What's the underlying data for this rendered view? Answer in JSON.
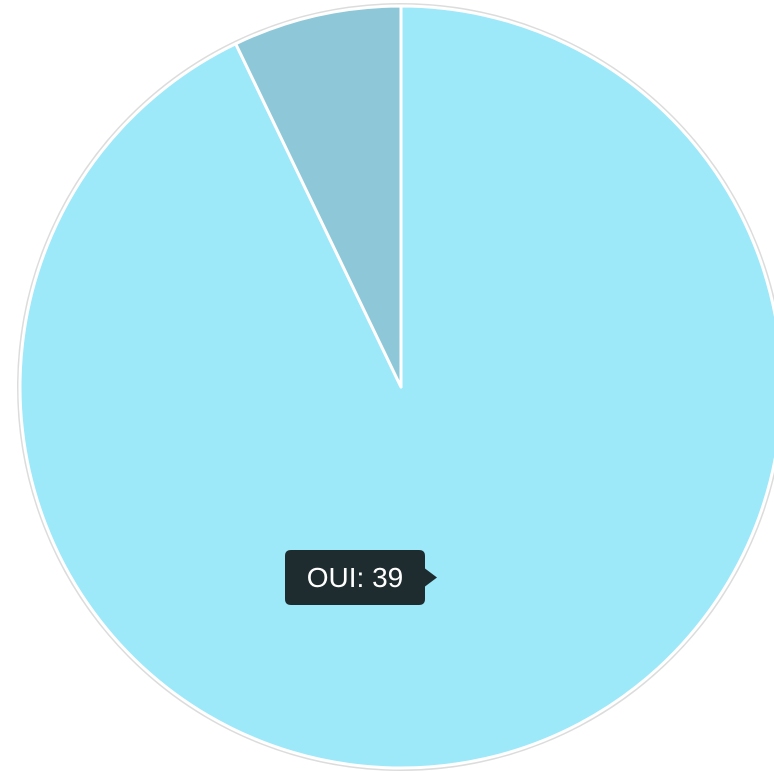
{
  "chart_data": {
    "type": "pie",
    "categories": [
      "OUI",
      null
    ],
    "values": [
      39,
      3
    ],
    "value_labels": [
      "OUI: 39",
      null
    ],
    "colors": [
      "#9de8f9",
      "#8ec8d8"
    ],
    "start_angle": -90,
    "direction": "clockwise"
  }
}
